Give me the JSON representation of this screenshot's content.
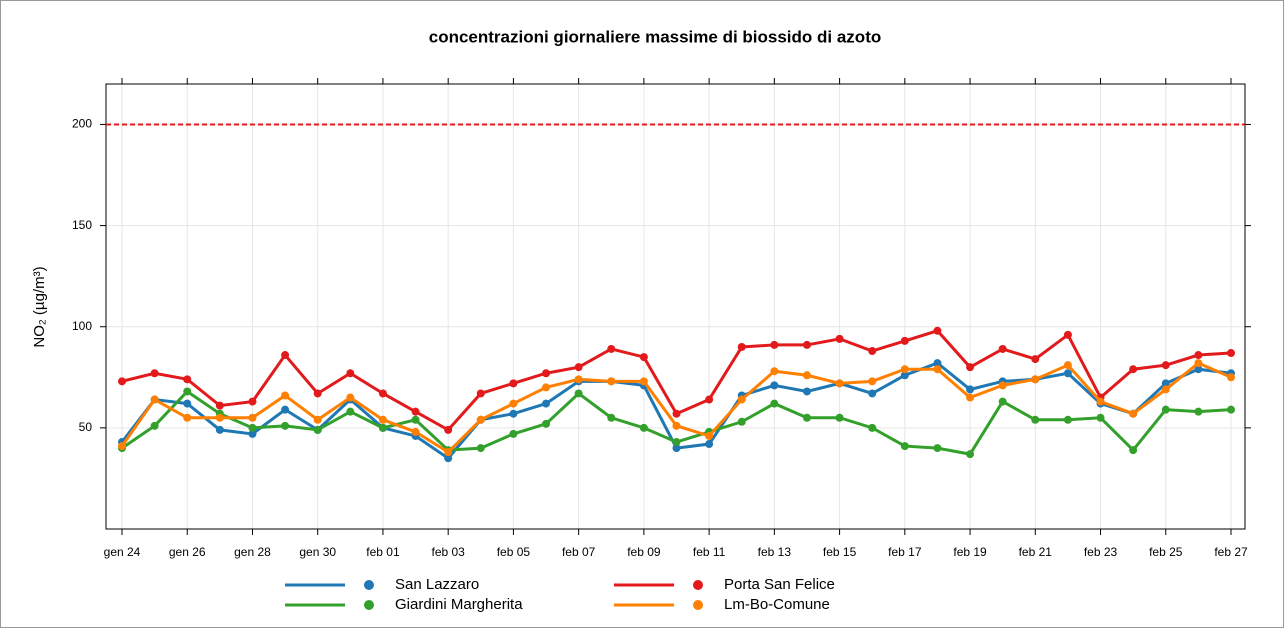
{
  "chart_data": {
    "type": "line",
    "title": "concentrazioni giornaliere massime di biossido di azoto",
    "ylabel": "NO₂ (µg/m³)",
    "categories": [
      "gen 24",
      null,
      "gen 26",
      null,
      "gen 28",
      null,
      "gen 30",
      null,
      "feb 01",
      null,
      "feb 03",
      null,
      "feb 05",
      null,
      "feb 07",
      null,
      "feb 09",
      null,
      "feb 11",
      null,
      "feb 13",
      null,
      "feb 15",
      null,
      "feb 17",
      null,
      "feb 19",
      null,
      "feb 21",
      null,
      "feb 23",
      null,
      "feb 25",
      null,
      "feb 27"
    ],
    "series": [
      {
        "name": "San Lazzaro",
        "color": "#1f78b4",
        "values": [
          43,
          64,
          62,
          49,
          47,
          59,
          49,
          64,
          50,
          46,
          35,
          54,
          57,
          62,
          73,
          73,
          71,
          40,
          42,
          66,
          71,
          68,
          72,
          67,
          76,
          82,
          69,
          73,
          74,
          77,
          62,
          57,
          72,
          79,
          77
        ]
      },
      {
        "name": "Giardini Margherita",
        "color": "#33a02c",
        "values": [
          40,
          51,
          68,
          57,
          50,
          51,
          49,
          58,
          50,
          54,
          39,
          40,
          47,
          52,
          67,
          55,
          50,
          43,
          48,
          53,
          62,
          55,
          55,
          50,
          41,
          40,
          37,
          63,
          54,
          54,
          55,
          39,
          59,
          58,
          59
        ]
      },
      {
        "name": "Porta San Felice",
        "color": "#e31a1c",
        "values": [
          73,
          77,
          74,
          61,
          63,
          86,
          67,
          77,
          67,
          58,
          49,
          67,
          72,
          77,
          80,
          89,
          85,
          57,
          64,
          90,
          91,
          91,
          94,
          88,
          93,
          98,
          80,
          89,
          84,
          96,
          65,
          79,
          81,
          86,
          87
        ]
      },
      {
        "name": "Lm-Bo-Comune",
        "color": "#ff7f00",
        "values": [
          41,
          64,
          55,
          55,
          55,
          66,
          54,
          65,
          54,
          48,
          38,
          54,
          62,
          70,
          74,
          73,
          73,
          51,
          46,
          64,
          78,
          76,
          72,
          73,
          79,
          79,
          65,
          71,
          74,
          81,
          63,
          57,
          69,
          82,
          75
        ]
      }
    ],
    "threshold": 200,
    "threshold_color": "#e31a1c",
    "ylim": [
      0,
      220
    ],
    "yticks": [
      50,
      100,
      150,
      200
    ],
    "grid": true
  }
}
